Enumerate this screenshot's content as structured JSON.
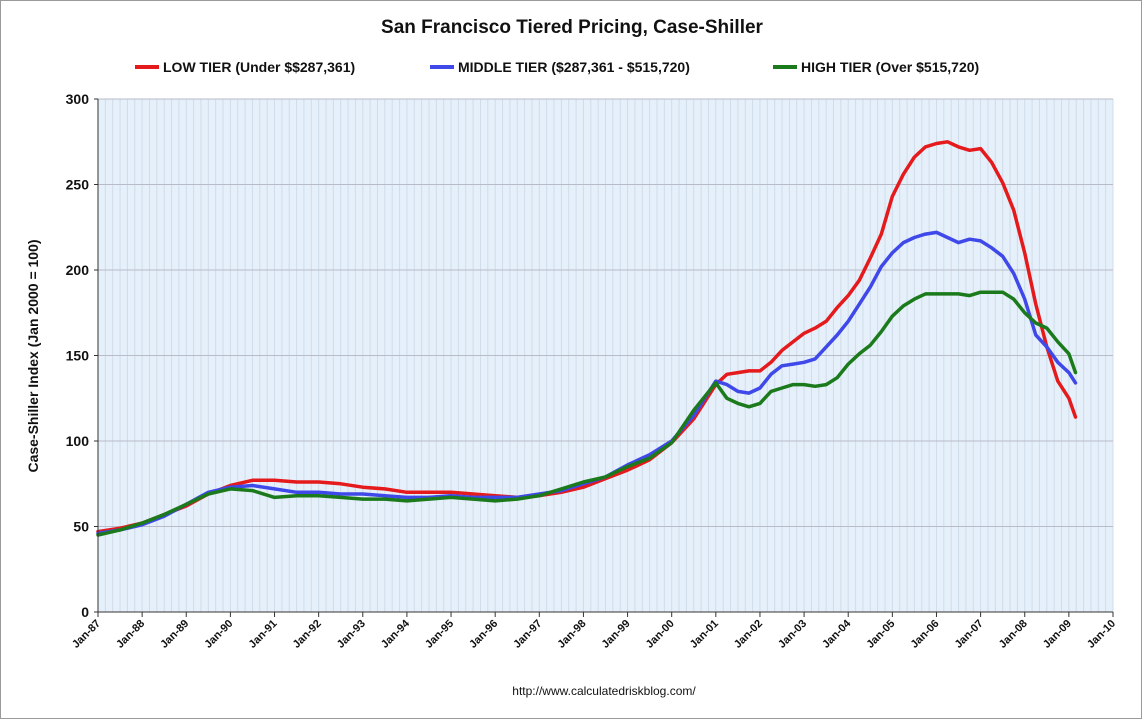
{
  "chart_data": {
    "type": "line",
    "title": "San Francisco Tiered Pricing, Case-Shiller",
    "ylabel": "Case-Shiller Index (Jan 2000 = 100)",
    "xlabel": "",
    "source": "http://www.calculatedriskblog.com/",
    "ylim": [
      0,
      300
    ],
    "yticks": [
      0,
      50,
      100,
      150,
      200,
      250,
      300
    ],
    "xlim": [
      1987.0,
      2010.0
    ],
    "xticks": [
      {
        "v": 1987,
        "label": "Jan-87"
      },
      {
        "v": 1988,
        "label": "Jan-88"
      },
      {
        "v": 1989,
        "label": "Jan-89"
      },
      {
        "v": 1990,
        "label": "Jan-90"
      },
      {
        "v": 1991,
        "label": "Jan-91"
      },
      {
        "v": 1992,
        "label": "Jan-92"
      },
      {
        "v": 1993,
        "label": "Jan-93"
      },
      {
        "v": 1994,
        "label": "Jan-94"
      },
      {
        "v": 1995,
        "label": "Jan-95"
      },
      {
        "v": 1996,
        "label": "Jan-96"
      },
      {
        "v": 1997,
        "label": "Jan-97"
      },
      {
        "v": 1998,
        "label": "Jan-98"
      },
      {
        "v": 1999,
        "label": "Jan-99"
      },
      {
        "v": 2000,
        "label": "Jan-00"
      },
      {
        "v": 2001,
        "label": "Jan-01"
      },
      {
        "v": 2002,
        "label": "Jan-02"
      },
      {
        "v": 2003,
        "label": "Jan-03"
      },
      {
        "v": 2004,
        "label": "Jan-04"
      },
      {
        "v": 2005,
        "label": "Jan-05"
      },
      {
        "v": 2006,
        "label": "Jan-06"
      },
      {
        "v": 2007,
        "label": "Jan-07"
      },
      {
        "v": 2008,
        "label": "Jan-08"
      },
      {
        "v": 2009,
        "label": "Jan-09"
      },
      {
        "v": 2010,
        "label": "Jan-10"
      }
    ],
    "grid": true,
    "legend_position": "top",
    "colors": {
      "plot_background": "#e6f0fa",
      "gridline": "#b8bcc8"
    },
    "series": [
      {
        "name": "LOW TIER (Under $$287,361)",
        "color": "#e41a1c",
        "x": [
          1987.0,
          1987.5,
          1988.0,
          1988.5,
          1989.0,
          1989.5,
          1990.0,
          1990.5,
          1991.0,
          1991.5,
          1992.0,
          1992.5,
          1993.0,
          1993.5,
          1994.0,
          1994.5,
          1995.0,
          1995.5,
          1996.0,
          1996.5,
          1997.0,
          1997.5,
          1998.0,
          1998.5,
          1999.0,
          1999.5,
          2000.0,
          2000.5,
          2001.0,
          2001.25,
          2001.5,
          2001.75,
          2002.0,
          2002.25,
          2002.5,
          2002.75,
          2003.0,
          2003.25,
          2003.5,
          2003.75,
          2004.0,
          2004.25,
          2004.5,
          2004.75,
          2005.0,
          2005.25,
          2005.5,
          2005.75,
          2006.0,
          2006.25,
          2006.5,
          2006.75,
          2007.0,
          2007.25,
          2007.5,
          2007.75,
          2008.0,
          2008.25,
          2008.5,
          2008.75,
          2009.0,
          2009.15
        ],
        "values": [
          47,
          49,
          52,
          57,
          62,
          69,
          74,
          77,
          77,
          76,
          76,
          75,
          73,
          72,
          70,
          70,
          70,
          69,
          68,
          67,
          68,
          70,
          73,
          78,
          83,
          89,
          99,
          113,
          133,
          139,
          140,
          141,
          141,
          146,
          153,
          158,
          163,
          166,
          170,
          178,
          185,
          194,
          207,
          221,
          243,
          256,
          266,
          272,
          274,
          275,
          272,
          270,
          271,
          263,
          251,
          235,
          210,
          180,
          155,
          135,
          125,
          114
        ]
      },
      {
        "name": "MIDDLE TIER ($287,361 - $515,720)",
        "color": "#3f48e8",
        "x": [
          1987.0,
          1987.5,
          1988.0,
          1988.5,
          1989.0,
          1989.5,
          1990.0,
          1990.5,
          1991.0,
          1991.5,
          1992.0,
          1992.5,
          1993.0,
          1993.5,
          1994.0,
          1994.5,
          1995.0,
          1995.5,
          1996.0,
          1996.5,
          1997.0,
          1997.5,
          1998.0,
          1998.5,
          1999.0,
          1999.5,
          2000.0,
          2000.5,
          2001.0,
          2001.25,
          2001.5,
          2001.75,
          2002.0,
          2002.25,
          2002.5,
          2002.75,
          2003.0,
          2003.25,
          2003.5,
          2003.75,
          2004.0,
          2004.25,
          2004.5,
          2004.75,
          2005.0,
          2005.25,
          2005.5,
          2005.75,
          2006.0,
          2006.25,
          2006.5,
          2006.75,
          2007.0,
          2007.25,
          2007.5,
          2007.75,
          2008.0,
          2008.25,
          2008.5,
          2008.75,
          2009.0,
          2009.15
        ],
        "values": [
          46,
          48,
          51,
          56,
          63,
          70,
          73,
          74,
          72,
          70,
          70,
          69,
          69,
          68,
          67,
          67,
          68,
          67,
          67,
          67,
          69,
          71,
          75,
          79,
          86,
          92,
          100,
          115,
          135,
          133,
          129,
          128,
          131,
          139,
          144,
          145,
          146,
          148,
          155,
          162,
          170,
          180,
          190,
          202,
          210,
          216,
          219,
          221,
          222,
          219,
          216,
          218,
          217,
          213,
          208,
          198,
          183,
          162,
          155,
          146,
          140,
          134
        ]
      },
      {
        "name": "HIGH TIER (Over $515,720)",
        "color": "#1b7a1b",
        "x": [
          1987.0,
          1987.5,
          1988.0,
          1988.5,
          1989.0,
          1989.5,
          1990.0,
          1990.5,
          1991.0,
          1991.5,
          1992.0,
          1992.5,
          1993.0,
          1993.5,
          1994.0,
          1994.5,
          1995.0,
          1995.5,
          1996.0,
          1996.5,
          1997.0,
          1997.5,
          1998.0,
          1998.5,
          1999.0,
          1999.5,
          2000.0,
          2000.5,
          2001.0,
          2001.25,
          2001.5,
          2001.75,
          2002.0,
          2002.25,
          2002.5,
          2002.75,
          2003.0,
          2003.25,
          2003.5,
          2003.75,
          2004.0,
          2004.25,
          2004.5,
          2004.75,
          2005.0,
          2005.25,
          2005.5,
          2005.75,
          2006.0,
          2006.25,
          2006.5,
          2006.75,
          2007.0,
          2007.25,
          2007.5,
          2007.75,
          2008.0,
          2008.25,
          2008.5,
          2008.75,
          2009.0,
          2009.15
        ],
        "values": [
          45,
          48,
          52,
          57,
          63,
          69,
          72,
          71,
          67,
          68,
          68,
          67,
          66,
          66,
          65,
          66,
          67,
          66,
          65,
          66,
          68,
          72,
          76,
          79,
          85,
          90,
          99,
          118,
          134,
          125,
          122,
          120,
          122,
          129,
          131,
          133,
          133,
          132,
          133,
          137,
          145,
          151,
          156,
          164,
          173,
          179,
          183,
          186,
          186,
          186,
          186,
          185,
          187,
          187,
          187,
          183,
          175,
          169,
          166,
          158,
          151,
          140
        ]
      }
    ]
  }
}
